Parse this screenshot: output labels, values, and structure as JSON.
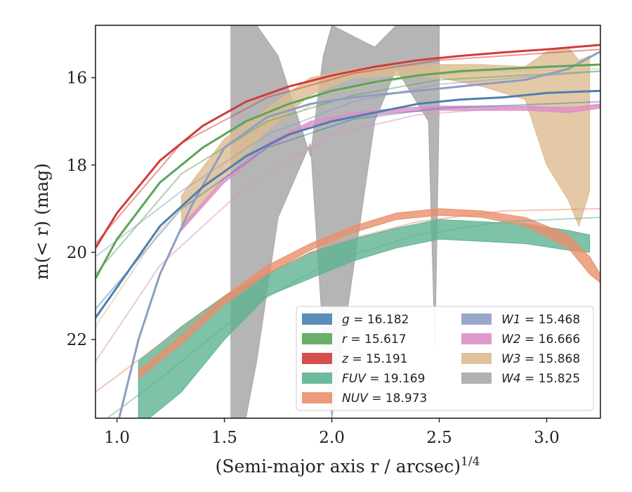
{
  "chart_data": {
    "type": "line",
    "xlabel": "(Semi-major axis r / arcsec)",
    "xlabel_super": "1/4",
    "ylabel": "m(< r) (mag)",
    "xlim": [
      0.9,
      3.25
    ],
    "ylim": [
      23.8,
      14.8
    ],
    "y_inverted": true,
    "xticks": [
      "1.0",
      "1.5",
      "2.0",
      "2.5",
      "3.0"
    ],
    "yticks": [
      "16",
      "18",
      "20",
      "22"
    ],
    "grid": false,
    "legend_position": "lower-right",
    "legend_columns": 2,
    "colors": {
      "g": "#4c7fb0",
      "r": "#5aa55a",
      "z": "#d03c3c",
      "FUV": "#5eb392",
      "NUV": "#ea8f6c",
      "W1": "#8e9dc4",
      "W2": "#dc8fc6",
      "W3": "#dcbb8f",
      "W4": "#a8a8a8"
    },
    "series": [
      {
        "key": "g",
        "label_var": "g",
        "label_value": "= 16.182",
        "kind": "line",
        "x": [
          0.9,
          1.0,
          1.2,
          1.4,
          1.6,
          1.8,
          2.0,
          2.2,
          2.4,
          2.6,
          2.8,
          3.0,
          3.25
        ],
        "y": [
          21.5,
          20.8,
          19.4,
          18.5,
          17.8,
          17.3,
          17.0,
          16.8,
          16.6,
          16.5,
          16.45,
          16.35,
          16.3
        ],
        "model_x": [
          0.9,
          1.3,
          1.7,
          2.1,
          2.5,
          3.25
        ],
        "model_y": [
          21.3,
          19.0,
          17.6,
          16.95,
          16.7,
          16.55
        ]
      },
      {
        "key": "r",
        "label_var": "r",
        "label_value": "= 15.617",
        "kind": "line",
        "x": [
          0.9,
          1.0,
          1.2,
          1.4,
          1.6,
          1.8,
          2.0,
          2.2,
          2.4,
          2.6,
          2.8,
          3.0,
          3.25
        ],
        "y": [
          20.6,
          19.7,
          18.4,
          17.6,
          17.0,
          16.6,
          16.3,
          16.1,
          15.95,
          15.85,
          15.8,
          15.75,
          15.7
        ],
        "model_x": [
          0.9,
          1.3,
          1.7,
          2.1,
          2.5,
          3.25
        ],
        "model_y": [
          20.5,
          18.2,
          17.0,
          16.4,
          16.05,
          15.85
        ]
      },
      {
        "key": "z",
        "label_var": "z",
        "label_value": "= 15.191",
        "kind": "line",
        "x": [
          0.9,
          1.0,
          1.2,
          1.4,
          1.6,
          1.8,
          2.0,
          2.2,
          2.4,
          2.6,
          2.8,
          3.0,
          3.25
        ],
        "y": [
          19.9,
          19.1,
          17.9,
          17.1,
          16.55,
          16.2,
          15.95,
          15.75,
          15.6,
          15.5,
          15.42,
          15.35,
          15.25
        ],
        "model_x": [
          0.9,
          1.3,
          1.7,
          2.1,
          2.5,
          3.25
        ],
        "model_y": [
          19.8,
          17.5,
          16.45,
          15.9,
          15.6,
          15.35
        ]
      },
      {
        "key": "FUV",
        "label_var": "FUV",
        "label_value": "= 19.169",
        "kind": "band",
        "x": [
          1.1,
          1.3,
          1.5,
          1.7,
          1.9,
          2.1,
          2.3,
          2.5,
          2.7,
          2.9,
          3.1,
          3.2
        ],
        "y_upper": [
          22.5,
          21.7,
          21.0,
          20.5,
          20.0,
          19.7,
          19.45,
          19.25,
          19.3,
          19.35,
          19.5,
          19.6
        ],
        "y_lower": [
          24.0,
          23.2,
          22.0,
          21.0,
          20.6,
          20.2,
          19.9,
          19.7,
          19.75,
          19.8,
          19.95,
          20.0
        ],
        "model_x": [
          0.9,
          1.2,
          1.6,
          2.0,
          2.4,
          2.8,
          3.25
        ],
        "model_y": [
          24.0,
          22.9,
          21.3,
          20.2,
          19.6,
          19.3,
          19.2
        ]
      },
      {
        "key": "NUV",
        "label_var": "NUV",
        "label_value": "= 18.973",
        "kind": "band",
        "x": [
          1.1,
          1.3,
          1.5,
          1.7,
          1.9,
          2.1,
          2.3,
          2.5,
          2.7,
          2.9,
          3.1,
          3.2,
          3.25
        ],
        "y_upper": [
          22.7,
          21.9,
          21.0,
          20.3,
          19.8,
          19.4,
          19.1,
          19.0,
          19.05,
          19.2,
          19.6,
          20.1,
          20.5
        ],
        "y_lower": [
          22.9,
          22.1,
          21.2,
          20.5,
          19.95,
          19.55,
          19.25,
          19.15,
          19.2,
          19.4,
          19.9,
          20.5,
          20.7
        ],
        "model_x": [
          0.9,
          1.2,
          1.6,
          2.0,
          2.4,
          2.8,
          3.25
        ],
        "model_y": [
          23.2,
          22.1,
          20.7,
          19.8,
          19.3,
          19.05,
          19.0
        ]
      },
      {
        "key": "W1",
        "label_var": "W1",
        "label_value": "= 15.468",
        "kind": "line",
        "x": [
          1.0,
          1.1,
          1.2,
          1.35,
          1.5,
          1.7,
          1.9,
          2.1,
          2.3,
          2.5,
          2.7,
          2.9,
          3.1,
          3.25
        ],
        "y": [
          24.0,
          22.0,
          20.5,
          18.9,
          17.6,
          16.9,
          16.6,
          16.45,
          16.35,
          16.25,
          16.15,
          16.05,
          15.8,
          15.4
        ],
        "model_x": [
          0.9,
          1.3,
          1.7,
          2.1,
          2.5,
          3.25
        ],
        "model_y": [
          20.1,
          18.6,
          17.3,
          16.55,
          16.15,
          15.85
        ]
      },
      {
        "key": "W2",
        "label_var": "W2",
        "label_value": "= 16.666",
        "kind": "band",
        "x": [
          1.3,
          1.5,
          1.7,
          1.9,
          2.1,
          2.3,
          2.5,
          2.7,
          2.9,
          3.1,
          3.25
        ],
        "y_upper": [
          19.4,
          18.3,
          17.5,
          17.0,
          16.8,
          16.7,
          16.65,
          16.65,
          16.65,
          16.7,
          16.6
        ],
        "y_lower": [
          19.5,
          18.4,
          17.6,
          17.1,
          16.9,
          16.8,
          16.75,
          16.75,
          16.75,
          16.8,
          16.7
        ],
        "model_x": [
          0.9,
          1.2,
          1.6,
          2.0,
          2.4,
          2.8,
          3.25
        ],
        "model_y": [
          22.5,
          20.3,
          18.5,
          17.3,
          16.85,
          16.7,
          16.65
        ]
      },
      {
        "key": "W3",
        "label_var": "W3",
        "label_value": "= 15.868",
        "kind": "band",
        "x": [
          1.3,
          1.5,
          1.7,
          1.9,
          2.1,
          2.3,
          2.5,
          2.7,
          2.9,
          3.0,
          3.1,
          3.15,
          3.2
        ],
        "y_upper": [
          18.7,
          17.4,
          16.7,
          16.0,
          15.8,
          15.75,
          15.7,
          15.7,
          15.75,
          15.4,
          15.3,
          15.6,
          15.5
        ],
        "y_lower": [
          19.5,
          18.3,
          17.2,
          16.4,
          16.0,
          15.95,
          16.0,
          16.2,
          16.5,
          18.0,
          18.8,
          19.4,
          18.6
        ],
        "model_x": [
          0.9,
          1.2,
          1.6,
          2.0,
          2.4,
          2.8,
          3.25
        ],
        "model_y": [
          21.7,
          19.5,
          17.5,
          16.35,
          15.95,
          15.85,
          15.8
        ]
      },
      {
        "key": "W4",
        "label_var": "W4",
        "label_value": "= 15.825",
        "kind": "band",
        "x": [
          1.53,
          1.56,
          1.6,
          1.65,
          1.75,
          1.9,
          1.96,
          2.0,
          2.2,
          2.3,
          2.45,
          2.48,
          2.5
        ],
        "y_upper": [
          14.8,
          14.8,
          14.8,
          14.8,
          15.5,
          17.8,
          15.5,
          14.8,
          15.3,
          14.8,
          14.8,
          14.8,
          14.8
        ],
        "y_lower": [
          23.8,
          23.8,
          23.8,
          22.5,
          19.2,
          17.5,
          22.0,
          23.8,
          17.0,
          15.8,
          17.0,
          22.2,
          16.6
        ],
        "model_x": [],
        "model_y": []
      }
    ]
  }
}
